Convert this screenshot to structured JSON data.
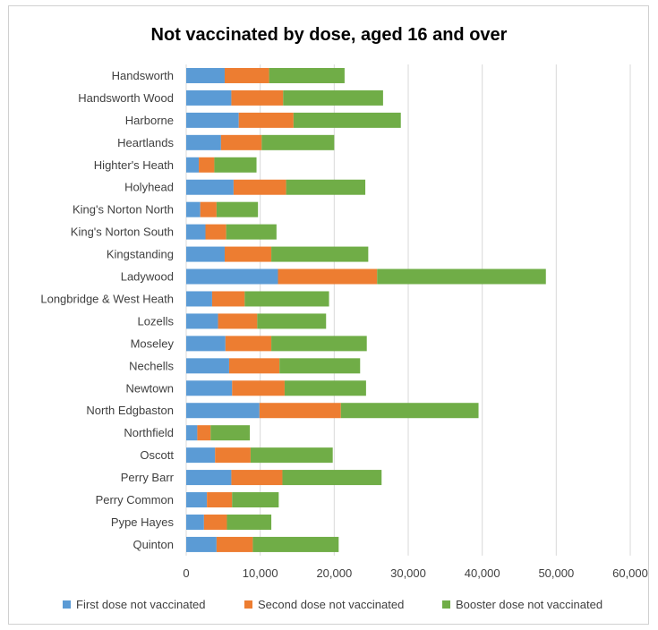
{
  "chart_data": {
    "type": "bar",
    "orientation": "horizontal",
    "stacked": true,
    "title": "Not vaccinated by dose, aged 16 and over",
    "xlabel": "",
    "ylabel": "",
    "xlim": [
      0,
      60000
    ],
    "xticks": [
      0,
      10000,
      20000,
      30000,
      40000,
      50000,
      60000
    ],
    "xtick_labels": [
      "0",
      "10,000",
      "20,000",
      "30,000",
      "40,000",
      "50,000",
      "60,000"
    ],
    "grid": "vertical",
    "legend_position": "bottom",
    "categories": [
      "Handsworth",
      "Handsworth Wood",
      "Harborne",
      "Heartlands",
      "Highter's Heath",
      "Holyhead",
      "King's Norton North",
      "King's Norton South",
      "Kingstanding",
      "Ladywood",
      "Longbridge & West Heath",
      "Lozells",
      "Moseley",
      "Nechells",
      "Newtown",
      "North Edgbaston",
      "Northfield",
      "Oscott",
      "Perry Barr",
      "Perry Common",
      "Pype Hayes",
      "Quinton"
    ],
    "series": [
      {
        "name": "First dose not vaccinated",
        "color": "#5b9bd5",
        "values": [
          5200,
          6100,
          7100,
          4700,
          1700,
          6400,
          1900,
          2600,
          5200,
          12400,
          3500,
          4300,
          5300,
          5800,
          6200,
          9900,
          1500,
          3900,
          6100,
          2800,
          2400,
          4100
        ]
      },
      {
        "name": "Second dose not vaccinated",
        "color": "#ed7d31",
        "values": [
          6000,
          7000,
          7400,
          5500,
          2100,
          7100,
          2200,
          2800,
          6300,
          13400,
          4400,
          5300,
          6200,
          6800,
          7100,
          11000,
          1800,
          4800,
          6900,
          3400,
          3100,
          4900
        ]
      },
      {
        "name": "Booster dose not vaccinated",
        "color": "#70ad47",
        "values": [
          10200,
          13500,
          14500,
          9800,
          5700,
          10700,
          5600,
          6800,
          13100,
          22800,
          11400,
          9300,
          12900,
          10900,
          11000,
          18600,
          5300,
          11100,
          13400,
          6300,
          6000,
          11600
        ]
      }
    ]
  }
}
